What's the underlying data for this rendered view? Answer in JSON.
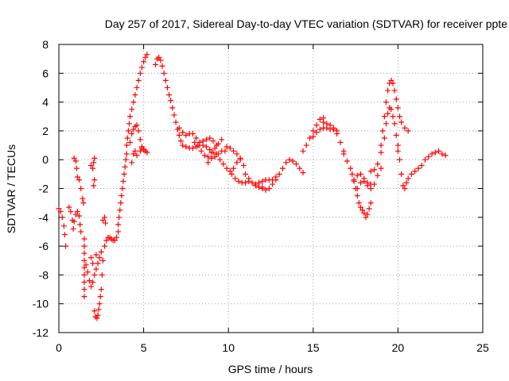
{
  "chart_data": {
    "type": "scatter",
    "title": "Day 257 of 2017, Sidereal Day-to-day VTEC variation (SDTVAR) for receiver ppte",
    "xlabel": "GPS time / hours",
    "ylabel": "SDTVAR / TECUs",
    "xlim": [
      0,
      25
    ],
    "ylim": [
      -12,
      8
    ],
    "xticks": [
      "0",
      "5",
      "10",
      "15",
      "20",
      "25"
    ],
    "yticks": [
      "-12",
      "-10",
      "-8",
      "-6",
      "-4",
      "-2",
      "0",
      "2",
      "4",
      "6",
      "8"
    ],
    "grid": true,
    "marker": "plus",
    "color": "#ff0000",
    "series": [
      {
        "points": [
          [
            0.0,
            -3.4
          ],
          [
            0.1,
            -3.6
          ],
          [
            0.2,
            -4.0
          ],
          [
            0.3,
            -4.6
          ],
          [
            0.35,
            -5.2
          ],
          [
            0.4,
            -6.0
          ],
          [
            0.6,
            -3.3
          ],
          [
            0.7,
            -3.6
          ],
          [
            0.8,
            -4.2
          ],
          [
            0.85,
            -4.8
          ],
          [
            0.9,
            -4.3
          ],
          [
            1.0,
            -3.8
          ],
          [
            1.1,
            -3.6
          ],
          [
            1.2,
            -3.9
          ],
          [
            1.25,
            -4.5
          ],
          [
            1.3,
            -5.0
          ],
          [
            0.9,
            0.1
          ],
          [
            1.0,
            -0.1
          ],
          [
            1.05,
            -0.6
          ],
          [
            1.1,
            -1.2
          ],
          [
            1.2,
            -1.4
          ],
          [
            1.3,
            -2.0
          ],
          [
            1.4,
            -2.7
          ],
          [
            1.45,
            -3.0
          ],
          [
            1.5,
            -5.5
          ],
          [
            1.5,
            -6.0
          ],
          [
            1.5,
            -6.5
          ],
          [
            1.5,
            -7.0
          ],
          [
            1.5,
            -7.5
          ],
          [
            1.5,
            -8.0
          ],
          [
            1.5,
            -8.5
          ],
          [
            1.5,
            -9.0
          ],
          [
            1.5,
            -9.5
          ],
          [
            1.6,
            -7.3
          ],
          [
            1.7,
            -7.8
          ],
          [
            1.8,
            -8.4
          ],
          [
            1.9,
            -8.8
          ],
          [
            2.0,
            -8.5
          ],
          [
            2.1,
            -8.0
          ],
          [
            2.2,
            -7.6
          ],
          [
            2.3,
            -7.2
          ],
          [
            2.4,
            -6.8
          ],
          [
            2.5,
            -6.4
          ],
          [
            1.9,
            -6.8
          ],
          [
            2.0,
            -7.2
          ],
          [
            2.2,
            -6.6
          ],
          [
            1.9,
            -0.4
          ],
          [
            2.0,
            -0.6
          ],
          [
            2.05,
            -0.2
          ],
          [
            2.1,
            0.1
          ],
          [
            2.1,
            -1.4
          ],
          [
            2.05,
            -1.8
          ],
          [
            2.1,
            -10.5
          ],
          [
            2.15,
            -10.9
          ],
          [
            2.25,
            -11.0
          ],
          [
            2.3,
            -10.8
          ],
          [
            2.35,
            -10.4
          ],
          [
            2.4,
            -10.0
          ],
          [
            2.45,
            -9.5
          ],
          [
            2.5,
            -9.0
          ],
          [
            2.55,
            -8.0
          ],
          [
            2.6,
            -7.0
          ],
          [
            2.6,
            -4.2
          ],
          [
            2.7,
            -4.0
          ],
          [
            2.75,
            -4.4
          ],
          [
            2.7,
            -6.0
          ],
          [
            2.8,
            -5.6
          ],
          [
            2.9,
            -5.4
          ],
          [
            3.0,
            -5.4
          ],
          [
            3.1,
            -5.5
          ],
          [
            3.2,
            -5.6
          ],
          [
            3.3,
            -5.6
          ],
          [
            3.4,
            -5.4
          ],
          [
            3.5,
            -5.0
          ],
          [
            3.5,
            -4.5
          ],
          [
            3.55,
            -4.0
          ],
          [
            3.6,
            -3.5
          ],
          [
            3.65,
            -3.0
          ],
          [
            3.7,
            -2.5
          ],
          [
            3.75,
            -2.0
          ],
          [
            3.8,
            -1.5
          ],
          [
            3.85,
            -1.0
          ],
          [
            3.9,
            -0.5
          ],
          [
            3.95,
            0.0
          ],
          [
            4.0,
            0.4
          ],
          [
            4.0,
            1.0
          ],
          [
            4.05,
            1.5
          ],
          [
            4.1,
            2.0
          ],
          [
            4.15,
            2.5
          ],
          [
            4.2,
            3.0
          ],
          [
            4.3,
            3.5
          ],
          [
            4.4,
            4.0
          ],
          [
            4.5,
            4.5
          ],
          [
            4.6,
            5.0
          ],
          [
            4.7,
            5.5
          ],
          [
            4.8,
            6.0
          ],
          [
            4.9,
            6.4
          ],
          [
            5.0,
            6.8
          ],
          [
            5.1,
            7.1
          ],
          [
            5.2,
            7.3
          ],
          [
            4.3,
            -0.2
          ],
          [
            4.4,
            0.4
          ],
          [
            4.5,
            0.6
          ],
          [
            4.6,
            0.3
          ],
          [
            4.8,
            0.6
          ],
          [
            4.9,
            0.8
          ],
          [
            4.2,
            1.2
          ],
          [
            4.3,
            1.8
          ],
          [
            4.4,
            2.1
          ],
          [
            4.5,
            2.3
          ],
          [
            4.6,
            2.4
          ],
          [
            4.7,
            2.0
          ],
          [
            4.8,
            1.4
          ],
          [
            4.9,
            0.9
          ],
          [
            5.0,
            0.7
          ],
          [
            5.1,
            0.6
          ],
          [
            5.2,
            0.5
          ],
          [
            5.7,
            6.6
          ],
          [
            5.8,
            7.0
          ],
          [
            5.9,
            7.1
          ],
          [
            6.0,
            6.9
          ],
          [
            6.1,
            6.5
          ],
          [
            6.2,
            6.0
          ],
          [
            6.3,
            5.5
          ],
          [
            6.4,
            5.0
          ],
          [
            6.5,
            4.5
          ],
          [
            6.6,
            4.1
          ],
          [
            6.7,
            3.6
          ],
          [
            6.8,
            3.1
          ],
          [
            6.9,
            2.6
          ],
          [
            7.0,
            2.1
          ],
          [
            7.1,
            1.7
          ],
          [
            7.2,
            1.3
          ],
          [
            7.3,
            1.0
          ],
          [
            7.5,
            0.9
          ],
          [
            7.7,
            0.8
          ],
          [
            7.9,
            0.8
          ],
          [
            8.1,
            0.9
          ],
          [
            8.3,
            1.0
          ],
          [
            8.5,
            1.0
          ],
          [
            8.7,
            0.9
          ],
          [
            8.9,
            0.7
          ],
          [
            9.1,
            0.5
          ],
          [
            9.3,
            0.4
          ],
          [
            7.1,
            2.2
          ],
          [
            7.3,
            1.9
          ],
          [
            7.5,
            1.7
          ],
          [
            7.7,
            1.8
          ],
          [
            7.9,
            1.8
          ],
          [
            8.1,
            1.5
          ],
          [
            8.3,
            1.2
          ],
          [
            8.5,
            1.3
          ],
          [
            8.7,
            1.4
          ],
          [
            8.9,
            1.5
          ],
          [
            9.1,
            1.3
          ],
          [
            9.3,
            1.0
          ],
          [
            8.0,
            1.2
          ],
          [
            8.2,
            1.0
          ],
          [
            8.4,
            0.6
          ],
          [
            8.6,
            0.3
          ],
          [
            8.8,
            0.2
          ],
          [
            9.0,
            0.5
          ],
          [
            9.2,
            0.8
          ],
          [
            9.4,
            1.1
          ],
          [
            9.6,
            1.4
          ],
          [
            8.8,
            -0.2
          ],
          [
            9.0,
            0.1
          ],
          [
            9.2,
            0.2
          ],
          [
            9.4,
            0.4
          ],
          [
            9.6,
            0.6
          ],
          [
            9.8,
            0.6
          ],
          [
            9.5,
            0.0
          ],
          [
            9.7,
            -0.3
          ],
          [
            9.9,
            -0.6
          ],
          [
            10.1,
            -0.8
          ],
          [
            10.3,
            -0.6
          ],
          [
            10.5,
            -0.2
          ],
          [
            10.7,
            0.1
          ],
          [
            9.9,
            0.9
          ],
          [
            10.1,
            0.8
          ],
          [
            10.3,
            0.6
          ],
          [
            10.5,
            0.4
          ],
          [
            10.7,
            0.0
          ],
          [
            10.9,
            -0.4
          ],
          [
            10.2,
            -1.0
          ],
          [
            10.4,
            -1.3
          ],
          [
            10.6,
            -1.5
          ],
          [
            10.8,
            -1.6
          ],
          [
            11.0,
            -1.6
          ],
          [
            11.2,
            -1.5
          ],
          [
            11.0,
            -1.0
          ],
          [
            11.2,
            -1.3
          ],
          [
            11.4,
            -1.6
          ],
          [
            11.6,
            -1.8
          ],
          [
            11.8,
            -1.9
          ],
          [
            12.0,
            -1.9
          ],
          [
            11.6,
            -1.7
          ],
          [
            11.8,
            -1.9
          ],
          [
            12.0,
            -2.0
          ],
          [
            12.2,
            -2.1
          ],
          [
            12.4,
            -2.0
          ],
          [
            12.6,
            -1.7
          ],
          [
            11.8,
            -1.6
          ],
          [
            12.0,
            -1.5
          ],
          [
            12.2,
            -1.4
          ],
          [
            12.4,
            -1.4
          ],
          [
            12.6,
            -1.4
          ],
          [
            12.8,
            -1.4
          ],
          [
            12.8,
            -1.2
          ],
          [
            13.0,
            -1.0
          ],
          [
            13.2,
            -0.6
          ],
          [
            13.4,
            -0.2
          ],
          [
            13.6,
            0.0
          ],
          [
            13.8,
            -0.1
          ],
          [
            14.0,
            -0.3
          ],
          [
            14.2,
            -0.6
          ],
          [
            14.4,
            -0.9
          ],
          [
            14.4,
            0.6
          ],
          [
            14.6,
            1.0
          ],
          [
            14.8,
            1.5
          ],
          [
            15.0,
            2.0
          ],
          [
            15.2,
            2.4
          ],
          [
            15.4,
            2.8
          ],
          [
            15.6,
            2.9
          ],
          [
            15.0,
            1.6
          ],
          [
            15.2,
            1.9
          ],
          [
            15.4,
            2.1
          ],
          [
            15.6,
            2.2
          ],
          [
            15.8,
            2.2
          ],
          [
            16.0,
            2.1
          ],
          [
            16.2,
            2.1
          ],
          [
            16.4,
            1.8
          ],
          [
            16.6,
            1.2
          ],
          [
            16.8,
            0.6
          ],
          [
            15.6,
            2.6
          ],
          [
            15.8,
            2.5
          ],
          [
            16.0,
            2.4
          ],
          [
            16.2,
            2.2
          ],
          [
            16.4,
            2.0
          ],
          [
            16.8,
            0.4
          ],
          [
            17.0,
            -0.1
          ],
          [
            17.2,
            -0.6
          ],
          [
            17.3,
            -1.0
          ],
          [
            17.4,
            -1.5
          ],
          [
            17.5,
            -2.0
          ],
          [
            17.6,
            -2.5
          ],
          [
            17.7,
            -3.0
          ],
          [
            17.8,
            -3.3
          ],
          [
            17.9,
            -3.5
          ],
          [
            18.0,
            -3.7
          ],
          [
            18.1,
            -4.0
          ],
          [
            18.2,
            -3.8
          ],
          [
            18.3,
            -3.4
          ],
          [
            18.4,
            -3.0
          ],
          [
            17.4,
            -1.4
          ],
          [
            17.6,
            -1.1
          ],
          [
            17.8,
            -1.0
          ],
          [
            18.0,
            -1.3
          ],
          [
            18.2,
            -1.6
          ],
          [
            18.4,
            -1.7
          ],
          [
            17.6,
            -2.0
          ],
          [
            17.8,
            -1.6
          ],
          [
            18.0,
            -1.5
          ],
          [
            18.2,
            -1.8
          ],
          [
            18.4,
            -2.0
          ],
          [
            18.6,
            -1.7
          ],
          [
            18.8,
            -1.1
          ],
          [
            19.0,
            -0.6
          ],
          [
            18.4,
            -0.8
          ],
          [
            18.6,
            -0.7
          ],
          [
            18.8,
            -0.3
          ],
          [
            19.0,
            0.5
          ],
          [
            19.2,
            1.5
          ],
          [
            19.3,
            2.5
          ],
          [
            19.4,
            3.2
          ],
          [
            19.5,
            3.6
          ],
          [
            19.6,
            3.5
          ],
          [
            19.7,
            3.0
          ],
          [
            19.8,
            2.5
          ],
          [
            19.9,
            1.7
          ],
          [
            20.0,
            1.0
          ],
          [
            19.0,
            1.0
          ],
          [
            19.1,
            2.0
          ],
          [
            19.2,
            3.0
          ],
          [
            19.3,
            4.0
          ],
          [
            19.4,
            4.8
          ],
          [
            19.5,
            5.3
          ],
          [
            19.6,
            5.5
          ],
          [
            19.7,
            5.3
          ],
          [
            19.8,
            4.8
          ],
          [
            19.9,
            4.2
          ],
          [
            20.0,
            3.6
          ],
          [
            20.1,
            3.0
          ],
          [
            20.2,
            2.6
          ],
          [
            20.4,
            2.2
          ],
          [
            20.6,
            2.0
          ],
          [
            20.0,
            0.6
          ],
          [
            20.1,
            0.0
          ],
          [
            20.2,
            -1.0
          ],
          [
            20.3,
            -1.8
          ],
          [
            20.4,
            -2.0
          ],
          [
            20.5,
            -1.6
          ],
          [
            20.6,
            -1.3
          ],
          [
            20.8,
            -1.0
          ],
          [
            21.0,
            -0.8
          ],
          [
            21.2,
            -0.6
          ],
          [
            21.4,
            -0.4
          ],
          [
            21.6,
            0.0
          ],
          [
            21.8,
            0.2
          ],
          [
            22.0,
            0.4
          ],
          [
            22.2,
            0.5
          ],
          [
            22.4,
            0.6
          ],
          [
            22.6,
            0.4
          ],
          [
            22.8,
            0.3
          ]
        ]
      }
    ]
  }
}
